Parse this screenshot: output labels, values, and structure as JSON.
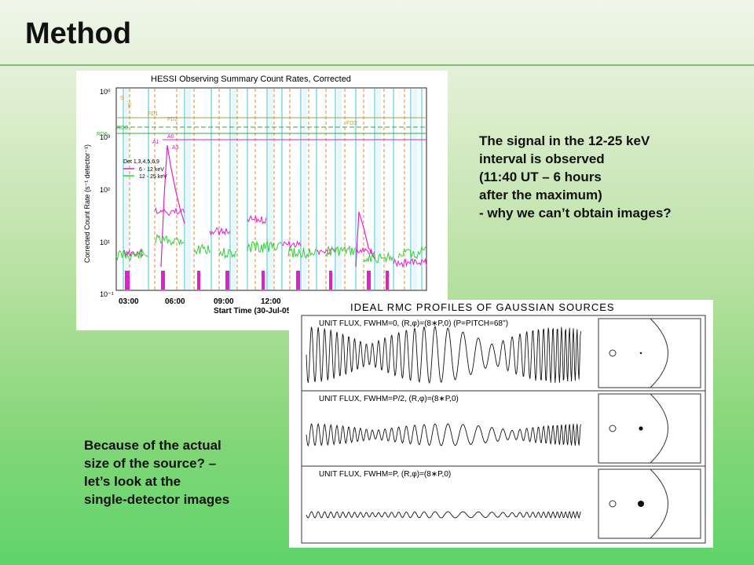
{
  "slide": {
    "title": "Method",
    "right_text": [
      "The signal in the 12-25 keV",
      "interval is observed",
      "(11:40 UT – 6 hours",
      "after the maximum)",
      "- why we can’t obtain images?"
    ],
    "left_text": [
      "Because of the actual",
      "size of the source? –",
      "let’s look at the",
      "single-detector images"
    ]
  },
  "figure_hessi": {
    "title": "HESSI Observing Summary Count Rates, Corrected",
    "ylabel": "Corrected Count Rate (s⁻¹ detector⁻¹)",
    "xlabel": "Start Time (30-Jul-05",
    "x_ticks": [
      "03:00",
      "06:00",
      "09:00",
      "12:00"
    ],
    "y_ticks": [
      "10³",
      "10²",
      "10¹",
      "10⁰",
      "10⁻¹"
    ],
    "y_ticks_top": "10⁰",
    "flag_labels": [
      "S",
      "F",
      "FD1",
      "FD2",
      "RD6",
      "RD0",
      "A0",
      "A1",
      "A3",
      "FD3"
    ],
    "legend_header": "Det 1,3,4,5,6,9",
    "legend": [
      "6 - 12 keV",
      "12 - 25 keV"
    ],
    "colors": {
      "magenta": "#e020c8",
      "green": "#30d030",
      "cyan": "#7ad8ec",
      "orange": "#e08a30",
      "olive": "#a8a040"
    }
  },
  "figure_rmc": {
    "title": "IDEAL RMC PROFILES OF GAUSSIAN SOURCES",
    "rows": [
      "UNIT FLUX, FWHM=0, (R,φ)=(8∗P,0)   (P=PITCH=68'')",
      "UNIT FLUX, FWHM=P/2, (R,φ)=(8∗P,0)",
      "UNIT FLUX, FWHM=P, (R,φ)=(8∗P,0)"
    ]
  }
}
